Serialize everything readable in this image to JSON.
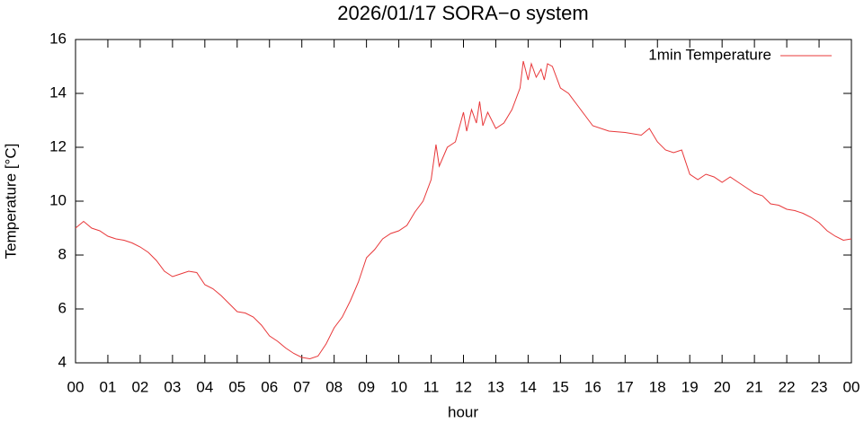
{
  "chart_data": {
    "type": "line",
    "title": "2026/01/17 SORA−o system",
    "x_label": "hour",
    "y_label": "Temperature [°C]",
    "legend_position": "top-right",
    "xlim": [
      0,
      24
    ],
    "xticks": [
      {
        "value": 0,
        "label": "00"
      },
      {
        "value": 1,
        "label": "01"
      },
      {
        "value": 2,
        "label": "02"
      },
      {
        "value": 3,
        "label": "03"
      },
      {
        "value": 4,
        "label": "04"
      },
      {
        "value": 5,
        "label": "05"
      },
      {
        "value": 6,
        "label": "06"
      },
      {
        "value": 7,
        "label": "07"
      },
      {
        "value": 8,
        "label": "08"
      },
      {
        "value": 9,
        "label": "09"
      },
      {
        "value": 10,
        "label": "10"
      },
      {
        "value": 11,
        "label": "11"
      },
      {
        "value": 12,
        "label": "12"
      },
      {
        "value": 13,
        "label": "13"
      },
      {
        "value": 14,
        "label": "14"
      },
      {
        "value": 15,
        "label": "15"
      },
      {
        "value": 16,
        "label": "16"
      },
      {
        "value": 17,
        "label": "17"
      },
      {
        "value": 18,
        "label": "18"
      },
      {
        "value": 19,
        "label": "19"
      },
      {
        "value": 20,
        "label": "20"
      },
      {
        "value": 21,
        "label": "21"
      },
      {
        "value": 22,
        "label": "22"
      },
      {
        "value": 23,
        "label": "23"
      },
      {
        "value": 24,
        "label": "00"
      }
    ],
    "ylim": [
      4,
      16
    ],
    "yticks": [
      4,
      6,
      8,
      10,
      12,
      14,
      16
    ],
    "x": [
      0,
      0.25,
      0.5,
      0.75,
      1,
      1.25,
      1.5,
      1.75,
      2,
      2.25,
      2.5,
      2.75,
      3,
      3.25,
      3.5,
      3.75,
      4,
      4.25,
      4.5,
      4.75,
      5,
      5.25,
      5.5,
      5.75,
      6,
      6.25,
      6.5,
      6.75,
      7,
      7.25,
      7.5,
      7.75,
      8,
      8.25,
      8.5,
      8.75,
      9,
      9.25,
      9.5,
      9.75,
      10,
      10.25,
      10.5,
      10.75,
      11,
      11.15,
      11.25,
      11.5,
      11.75,
      12,
      12.1,
      12.25,
      12.4,
      12.5,
      12.6,
      12.75,
      13,
      13.25,
      13.5,
      13.75,
      13.85,
      14,
      14.1,
      14.25,
      14.4,
      14.5,
      14.6,
      14.75,
      15,
      15.25,
      15.5,
      15.75,
      16,
      16.5,
      17,
      17.5,
      17.75,
      18,
      18.25,
      18.5,
      18.75,
      19,
      19.25,
      19.5,
      19.75,
      20,
      20.25,
      20.5,
      20.75,
      21,
      21.25,
      21.5,
      21.75,
      22,
      22.25,
      22.5,
      22.75,
      23,
      23.25,
      23.5,
      23.75,
      24
    ],
    "series": [
      {
        "name": "1min Temperature",
        "color": "#e8383a",
        "values": [
          9.0,
          9.25,
          9.0,
          8.9,
          8.7,
          8.6,
          8.55,
          8.45,
          8.3,
          8.1,
          7.8,
          7.4,
          7.2,
          7.3,
          7.4,
          7.35,
          6.9,
          6.75,
          6.5,
          6.2,
          5.9,
          5.85,
          5.7,
          5.4,
          5.0,
          4.8,
          4.55,
          4.35,
          4.2,
          4.15,
          4.25,
          4.7,
          5.3,
          5.7,
          6.3,
          7.0,
          7.9,
          8.2,
          8.6,
          8.8,
          8.9,
          9.1,
          9.6,
          10.0,
          10.8,
          12.1,
          11.3,
          12.0,
          12.2,
          13.3,
          12.6,
          13.4,
          12.9,
          13.7,
          12.8,
          13.3,
          12.7,
          12.9,
          13.4,
          14.2,
          15.2,
          14.5,
          15.1,
          14.6,
          14.9,
          14.5,
          15.1,
          15.0,
          14.2,
          14.0,
          13.6,
          13.2,
          12.8,
          12.6,
          12.55,
          12.45,
          12.7,
          12.2,
          11.9,
          11.8,
          11.9,
          11.0,
          10.8,
          11.0,
          10.9,
          10.7,
          10.9,
          10.7,
          10.5,
          10.3,
          10.2,
          9.9,
          9.85,
          9.7,
          9.65,
          9.55,
          9.4,
          9.2,
          8.9,
          8.7,
          8.55,
          8.6
        ]
      }
    ]
  }
}
